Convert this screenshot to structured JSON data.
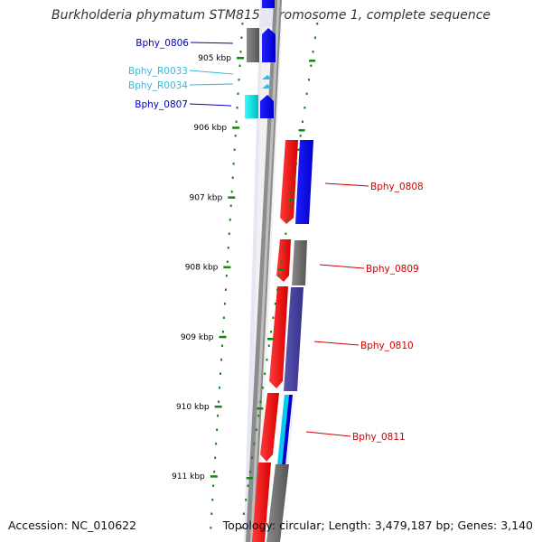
{
  "title": "Burkholderia phymatum STM815 chromosome 1, complete sequence",
  "accession_text": "Accession: NC_010622",
  "summary_text": "Topology: circular; Length: 3,479,187 bp; Genes: 3,140",
  "colors": {
    "forward_cds": "#0000ee",
    "reverse_cds": "#ee0000",
    "rna": "#33ccee",
    "gray": "#666666",
    "purple": "#443d99",
    "cyan": "#00cccc",
    "tick_green": "#118811",
    "backbone": "#888888"
  },
  "ticks": [
    {
      "label": "905 kbp"
    },
    {
      "label": "906 kbp"
    },
    {
      "label": "907 kbp"
    },
    {
      "label": "908 kbp"
    },
    {
      "label": "909 kbp"
    },
    {
      "label": "910 kbp"
    },
    {
      "label": "911 kbp"
    }
  ],
  "genes_left": [
    {
      "label": "Bphy_0806",
      "color": "#0000bb"
    },
    {
      "label": "Bphy_R0033",
      "color": "#33bbdd"
    },
    {
      "label": "Bphy_R0034",
      "color": "#33bbdd"
    },
    {
      "label": "Bphy_0807",
      "color": "#0000bb"
    }
  ],
  "genes_right": [
    {
      "label": "Bphy_0808",
      "color": "#cc0000"
    },
    {
      "label": "Bphy_0809",
      "color": "#cc0000"
    },
    {
      "label": "Bphy_0810",
      "color": "#cc0000"
    },
    {
      "label": "Bphy_0811",
      "color": "#cc0000"
    }
  ]
}
